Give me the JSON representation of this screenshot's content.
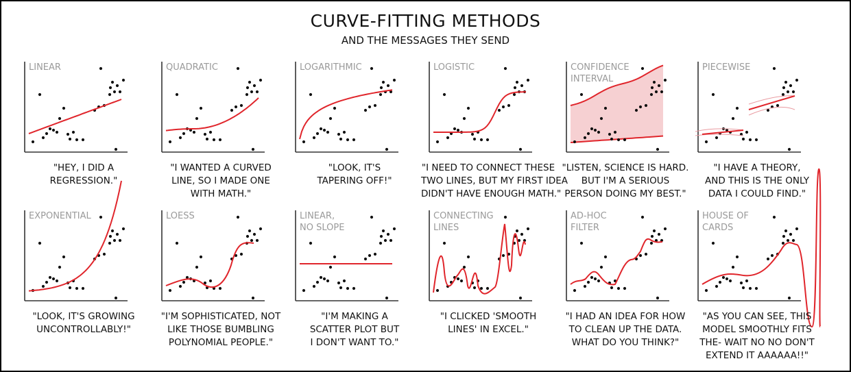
{
  "title": "CURVE-FITTING METHODS",
  "subtitle": "AND THE MESSAGES THEY SEND",
  "colors": {
    "fit": "#e0252b",
    "band": "#f6d0d2",
    "label": "#9a9a9a"
  },
  "panels": [
    {
      "label": "LINEAR",
      "caption": "\"HEY, I DID A\nREGRESSION.\""
    },
    {
      "label": "QUADRATIC",
      "caption": "\"I WANTED A CURVED\nLINE, SO I MADE ONE\nWITH MATH.\""
    },
    {
      "label": "LOGARITHMIC",
      "caption": "\"LOOK, IT'S\nTAPERING OFF!\""
    },
    {
      "label": "LOGISTIC",
      "caption": "\"I NEED TO CONNECT THESE\nTWO LINES, BUT MY FIRST IDEA\nDIDN'T HAVE ENOUGH MATH.\""
    },
    {
      "label": "CONFIDENCE\nINTERVAL",
      "caption": "\"LISTEN, SCIENCE IS HARD.\nBUT I'M A SERIOUS\nPERSON DOING MY BEST.\""
    },
    {
      "label": "PIECEWISE",
      "caption": "\"I HAVE A THEORY,\nAND THIS IS THE ONLY\nDATA I COULD FIND.\""
    },
    {
      "label": "EXPONENTIAL",
      "caption": "\"LOOK, IT'S GROWING\nUNCONTROLLABLY!\""
    },
    {
      "label": "LOESS",
      "caption": "\"I'M SOPHISTICATED, NOT\nLIKE THOSE BUMBLING\nPOLYNOMIAL PEOPLE.\""
    },
    {
      "label": "LINEAR,\nNO SLOPE",
      "caption": "\"I'M MAKING A\nSCATTER PLOT BUT\nI DON'T WANT TO.\""
    },
    {
      "label": "CONNECTING\nLINES",
      "caption": "\"I CLICKED 'SMOOTH\nLINES' IN EXCEL.\""
    },
    {
      "label": "AD-HOC\nFILTER",
      "caption": "\"I HAD AN IDEA FOR HOW\nTO CLEAN UP THE DATA.\nWHAT DO YOU THINK?\""
    },
    {
      "label": "HOUSE OF\nCARDS",
      "caption": "\"AS YOU CAN SEE, THIS\nMODEL SMOOTHLY FITS\nTHE- WAIT NO NO DON'T\nEXTEND IT AAAAAA!!\""
    }
  ]
}
